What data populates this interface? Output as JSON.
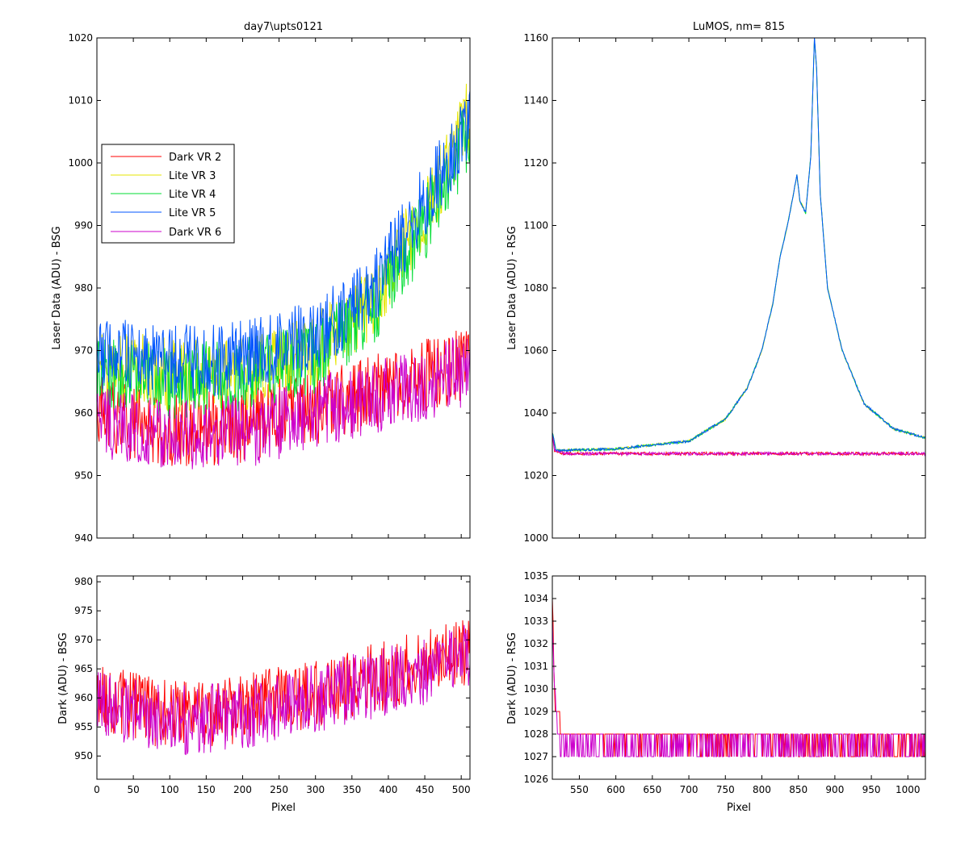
{
  "colors": {
    "dark_vr2": "#ff0000",
    "lite_vr3": "#e6e600",
    "lite_vr4": "#00dd33",
    "lite_vr5": "#0055ff",
    "dark_vr6": "#cc00cc"
  },
  "chart_data": [
    {
      "id": "tl",
      "type": "line",
      "title": "day7\\upts0121",
      "xlabel": "",
      "ylabel": "Laser Data (ADU) - BSG",
      "xlim": [
        0,
        512
      ],
      "ylim": [
        940,
        1020
      ],
      "xticks": [
        0,
        50,
        100,
        150,
        200,
        250,
        300,
        350,
        400,
        450,
        500
      ],
      "yticks": [
        940,
        950,
        960,
        970,
        980,
        990,
        1000,
        1010,
        1020
      ],
      "show_xtick_labels": false,
      "legend_position": "upper-left",
      "series": [
        {
          "name": "Dark VR 2",
          "color_key": "dark_vr2",
          "x_range": [
            0,
            512
          ],
          "curve": {
            "knots": [
              [
                0,
                960
              ],
              [
                100,
                957
              ],
              [
                200,
                958
              ],
              [
                300,
                961
              ],
              [
                400,
                964
              ],
              [
                512,
                968
              ]
            ],
            "noise": 6
          }
        },
        {
          "name": "Lite VR 3",
          "color_key": "lite_vr3",
          "x_range": [
            0,
            512
          ],
          "curve": {
            "knots": [
              [
                0,
                968
              ],
              [
                100,
                966
              ],
              [
                200,
                966
              ],
              [
                300,
                970
              ],
              [
                380,
                978
              ],
              [
                450,
                992
              ],
              [
                512,
                1008
              ]
            ],
            "noise": 6
          }
        },
        {
          "name": "Lite VR 4",
          "color_key": "lite_vr4",
          "x_range": [
            0,
            512
          ],
          "curve": {
            "knots": [
              [
                0,
                967
              ],
              [
                100,
                965
              ],
              [
                200,
                966
              ],
              [
                300,
                969
              ],
              [
                380,
                977
              ],
              [
                450,
                990
              ],
              [
                512,
                1005
              ]
            ],
            "noise": 6
          }
        },
        {
          "name": "Lite VR 5",
          "color_key": "lite_vr5",
          "x_range": [
            0,
            512
          ],
          "curve": {
            "knots": [
              [
                0,
                970
              ],
              [
                100,
                968
              ],
              [
                200,
                969
              ],
              [
                300,
                972
              ],
              [
                380,
                980
              ],
              [
                450,
                994
              ],
              [
                512,
                1006
              ]
            ],
            "noise": 6
          }
        },
        {
          "name": "Dark VR 6",
          "color_key": "dark_vr6",
          "x_range": [
            0,
            512
          ],
          "curve": {
            "knots": [
              [
                0,
                959
              ],
              [
                100,
                956
              ],
              [
                200,
                957
              ],
              [
                300,
                960
              ],
              [
                400,
                963
              ],
              [
                512,
                967
              ]
            ],
            "noise": 6
          }
        }
      ]
    },
    {
      "id": "tr",
      "type": "line",
      "title": "LuMOS, nm= 815",
      "xlabel": "",
      "ylabel": "Laser Data (ADU) - RSG",
      "xlim": [
        513,
        1024
      ],
      "ylim": [
        1000,
        1160
      ],
      "xticks": [
        550,
        600,
        650,
        700,
        750,
        800,
        850,
        900,
        950,
        1000
      ],
      "yticks": [
        1000,
        1020,
        1040,
        1060,
        1080,
        1100,
        1120,
        1140,
        1160
      ],
      "show_xtick_labels": false,
      "series": [
        {
          "name": "",
          "color_key": "dark_vr2",
          "x_range": [
            513,
            1024
          ],
          "curve": {
            "knots": [
              [
                513,
                1034
              ],
              [
                516,
                1028
              ],
              [
                530,
                1027
              ],
              [
                1024,
                1027
              ]
            ],
            "noise": 0.5
          }
        },
        {
          "name": "",
          "color_key": "lite_vr3",
          "x_range": [
            513,
            1024
          ],
          "curve": {
            "knots": [
              [
                513,
                1034
              ],
              [
                518,
                1028
              ],
              [
                600,
                1028.5
              ],
              [
                700,
                1031
              ],
              [
                750,
                1038
              ],
              [
                780,
                1048
              ],
              [
                800,
                1060
              ],
              [
                815,
                1075
              ],
              [
                825,
                1090
              ],
              [
                835,
                1100
              ],
              [
                848,
                1116
              ],
              [
                852,
                1108
              ],
              [
                860,
                1104
              ],
              [
                867,
                1122
              ],
              [
                872,
                1160
              ],
              [
                875,
                1150
              ],
              [
                880,
                1110
              ],
              [
                890,
                1080
              ],
              [
                910,
                1060
              ],
              [
                940,
                1043
              ],
              [
                980,
                1035
              ],
              [
                1024,
                1032
              ]
            ],
            "noise": 0.4
          }
        },
        {
          "name": "",
          "color_key": "lite_vr4",
          "x_range": [
            513,
            1024
          ],
          "curve": {
            "knots": [
              [
                513,
                1034
              ],
              [
                518,
                1028
              ],
              [
                600,
                1028.5
              ],
              [
                700,
                1031
              ],
              [
                750,
                1038
              ],
              [
                780,
                1048
              ],
              [
                800,
                1060
              ],
              [
                815,
                1075
              ],
              [
                825,
                1090
              ],
              [
                835,
                1100
              ],
              [
                848,
                1116
              ],
              [
                852,
                1108
              ],
              [
                860,
                1104
              ],
              [
                867,
                1122
              ],
              [
                872,
                1160
              ],
              [
                875,
                1150
              ],
              [
                880,
                1110
              ],
              [
                890,
                1080
              ],
              [
                910,
                1060
              ],
              [
                940,
                1043
              ],
              [
                980,
                1035
              ],
              [
                1024,
                1032
              ]
            ],
            "noise": 0.4
          }
        },
        {
          "name": "",
          "color_key": "lite_vr5",
          "x_range": [
            513,
            1024
          ],
          "curve": {
            "knots": [
              [
                513,
                1034
              ],
              [
                518,
                1028
              ],
              [
                600,
                1028.5
              ],
              [
                700,
                1031
              ],
              [
                750,
                1038
              ],
              [
                780,
                1048
              ],
              [
                800,
                1060
              ],
              [
                815,
                1075
              ],
              [
                825,
                1090
              ],
              [
                835,
                1100
              ],
              [
                848,
                1116
              ],
              [
                852,
                1108
              ],
              [
                860,
                1104
              ],
              [
                867,
                1122
              ],
              [
                872,
                1160
              ],
              [
                875,
                1150
              ],
              [
                880,
                1110
              ],
              [
                890,
                1080
              ],
              [
                910,
                1060
              ],
              [
                940,
                1043
              ],
              [
                980,
                1035
              ],
              [
                1024,
                1032
              ]
            ],
            "noise": 0.4
          }
        },
        {
          "name": "",
          "color_key": "dark_vr6",
          "x_range": [
            513,
            1024
          ],
          "curve": {
            "knots": [
              [
                513,
                1033
              ],
              [
                516,
                1028
              ],
              [
                530,
                1027
              ],
              [
                1024,
                1027
              ]
            ],
            "noise": 0.5
          }
        }
      ]
    },
    {
      "id": "bl",
      "type": "line",
      "title": "",
      "xlabel": "Pixel",
      "ylabel": "Dark (ADU) - BSG",
      "xlim": [
        0,
        512
      ],
      "ylim": [
        946,
        981
      ],
      "xticks": [
        0,
        50,
        100,
        150,
        200,
        250,
        300,
        350,
        400,
        450,
        500
      ],
      "yticks": [
        950,
        955,
        960,
        965,
        970,
        975,
        980
      ],
      "show_xtick_labels": true,
      "series": [
        {
          "name": "",
          "color_key": "dark_vr2",
          "x_range": [
            0,
            512
          ],
          "curve": {
            "knots": [
              [
                0,
                960
              ],
              [
                100,
                957
              ],
              [
                200,
                958
              ],
              [
                300,
                961
              ],
              [
                400,
                964
              ],
              [
                512,
                968
              ]
            ],
            "noise": 6
          }
        },
        {
          "name": "",
          "color_key": "dark_vr6",
          "x_range": [
            0,
            512
          ],
          "curve": {
            "knots": [
              [
                0,
                959
              ],
              [
                100,
                956
              ],
              [
                200,
                957
              ],
              [
                300,
                960
              ],
              [
                400,
                963
              ],
              [
                512,
                967
              ]
            ],
            "noise": 6
          }
        }
      ]
    },
    {
      "id": "br",
      "type": "line",
      "title": "",
      "xlabel": "Pixel",
      "ylabel": "Dark (ADU) - RSG",
      "xlim": [
        513,
        1024
      ],
      "ylim": [
        1026,
        1035
      ],
      "xticks": [
        550,
        600,
        650,
        700,
        750,
        800,
        850,
        900,
        950,
        1000
      ],
      "yticks": [
        1026,
        1027,
        1028,
        1029,
        1030,
        1031,
        1032,
        1033,
        1034,
        1035
      ],
      "show_xtick_labels": true,
      "series": [
        {
          "name": "",
          "color_key": "dark_vr2",
          "x_range": [
            513,
            1024
          ],
          "curve": {
            "knots": [
              [
                513,
                1034
              ],
              [
                515,
                1031
              ],
              [
                518,
                1029
              ],
              [
                525,
                1028
              ],
              [
                1024,
                1027.5
              ]
            ],
            "noise": 0.5,
            "quantize": true
          }
        },
        {
          "name": "",
          "color_key": "dark_vr6",
          "x_range": [
            513,
            1024
          ],
          "curve": {
            "knots": [
              [
                513,
                1033
              ],
              [
                516,
                1030
              ],
              [
                520,
                1028
              ],
              [
                530,
                1027.5
              ],
              [
                1024,
                1027.5
              ]
            ],
            "noise": 0.5,
            "quantize": true
          }
        }
      ]
    }
  ]
}
